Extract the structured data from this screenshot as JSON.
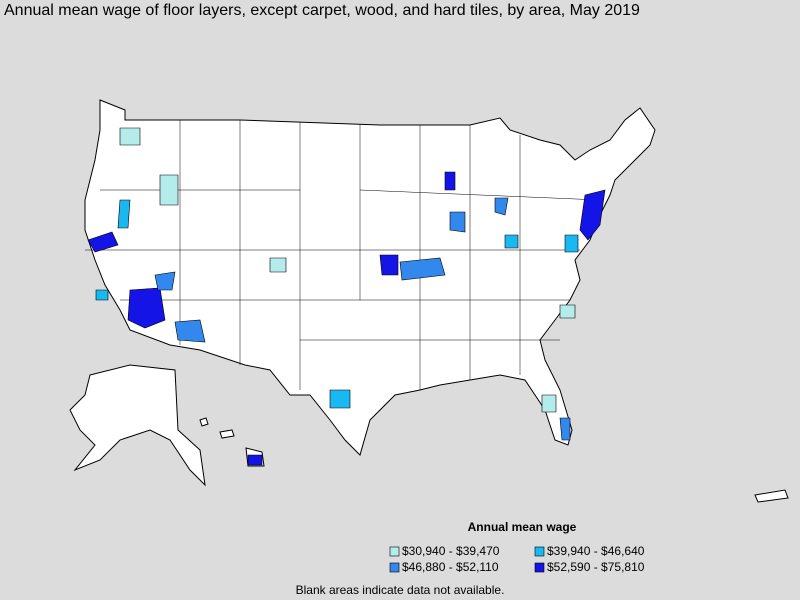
{
  "header": {
    "title": "Annual mean wage of floor layers, except carpet, wood, and hard tiles, by area, May 2019"
  },
  "legend": {
    "title": "Annual mean wage",
    "items": [
      {
        "label": "$30,940 - $39,470",
        "color": "#b4ecec"
      },
      {
        "label": "$39,940 - $46,640",
        "color": "#1ab8f0"
      },
      {
        "label": "$46,880 - $52,110",
        "color": "#3388ee"
      },
      {
        "label": "$52,590 - $75,810",
        "color": "#1414e6"
      }
    ]
  },
  "footnote": "Blank areas indicate data not available."
}
